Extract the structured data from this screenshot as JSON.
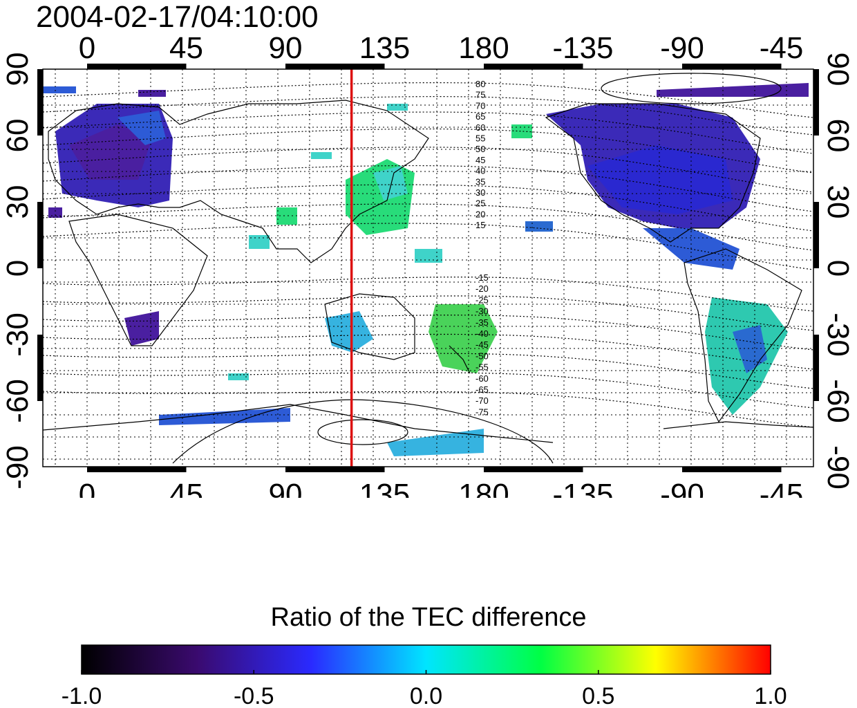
{
  "title": "2004-02-17/04:10:00",
  "map": {
    "lon_ticks": [
      "0",
      "45",
      "90",
      "135",
      "180",
      "-135",
      "-90",
      "-45"
    ],
    "lat_ticks": [
      "90",
      "60",
      "30",
      "0",
      "-30",
      "-60",
      "-90"
    ],
    "meridian_marker": {
      "longitude": 120,
      "color": "#dd1111"
    },
    "contour_labels_north": [
      "80",
      "75",
      "70",
      "65",
      "60",
      "55",
      "50",
      "45",
      "40",
      "35",
      "30",
      "25",
      "20",
      "15"
    ],
    "contour_labels_south": [
      "-15",
      "-20",
      "-25",
      "-30",
      "-35",
      "-40",
      "-45",
      "-50",
      "-55",
      "-60",
      "-65",
      "-70",
      "-75"
    ]
  },
  "colorbar": {
    "title": "Ratio of the TEC difference",
    "ticks": [
      "-1.0",
      "-0.5",
      "0.0",
      "0.5",
      "1.0"
    ],
    "range": [
      -1.0,
      1.0
    ],
    "colors": [
      "#000000",
      "#3a0a6e",
      "#2a2aff",
      "#00e5ff",
      "#00ff44",
      "#ffff00",
      "#ff0000"
    ]
  }
}
